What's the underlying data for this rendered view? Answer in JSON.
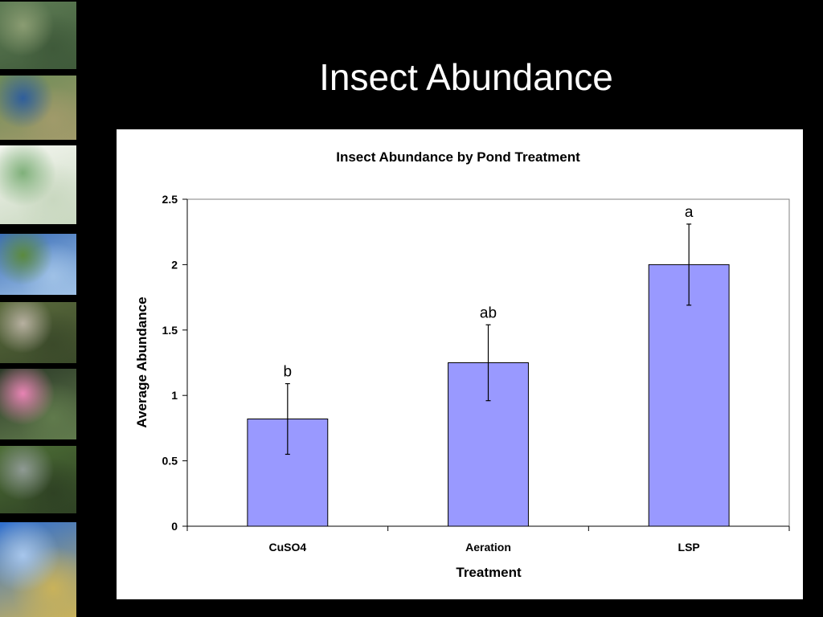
{
  "slide": {
    "title": "Insect Abundance"
  },
  "thumbnails": [
    {
      "name": "algae-pond-photo",
      "colors": [
        "#5f7d55",
        "#8a9c72",
        "#3f5a3a"
      ]
    },
    {
      "name": "pond-vegetation-photo",
      "colors": [
        "#6f8c58",
        "#2f5e9c",
        "#a09a6a"
      ]
    },
    {
      "name": "site-map-photo",
      "colors": [
        "#f4f6f0",
        "#7fb07a",
        "#c9d8c0"
      ]
    },
    {
      "name": "lake-landscape-photo",
      "colors": [
        "#3c6fb8",
        "#5b8a3e",
        "#9fc1e6"
      ]
    },
    {
      "name": "researcher-sampling-photo",
      "colors": [
        "#5a6a3c",
        "#b7b0a0",
        "#3b4a2a"
      ]
    },
    {
      "name": "water-lily-photo",
      "colors": [
        "#2c3a28",
        "#e884b4",
        "#607a4c"
      ]
    },
    {
      "name": "fish-photo",
      "colors": [
        "#4d6e36",
        "#8f9a94",
        "#2f4224"
      ]
    },
    {
      "name": "sample-jar-photo",
      "colors": [
        "#2f6fd0",
        "#a7c6ec",
        "#c9b25a"
      ]
    }
  ],
  "chart_data": {
    "type": "bar",
    "title": "Insect Abundance by Pond Treatment",
    "xlabel": "Treatment",
    "ylabel": "Average Abundance",
    "categories": [
      "CuSO4",
      "Aeration",
      "LSP"
    ],
    "values": [
      0.82,
      1.25,
      2.0
    ],
    "error": [
      0.27,
      0.29,
      0.31
    ],
    "annotations": [
      "b",
      "ab",
      "a"
    ],
    "ylim": [
      0,
      2.5
    ],
    "yticks": [
      0,
      0.5,
      1,
      1.5,
      2,
      2.5
    ],
    "ytick_labels": [
      "0",
      "0.5",
      "1",
      "1.5",
      "2",
      "2.5"
    ],
    "bar_color": "#9999ff",
    "grid": false,
    "legend": "none"
  }
}
